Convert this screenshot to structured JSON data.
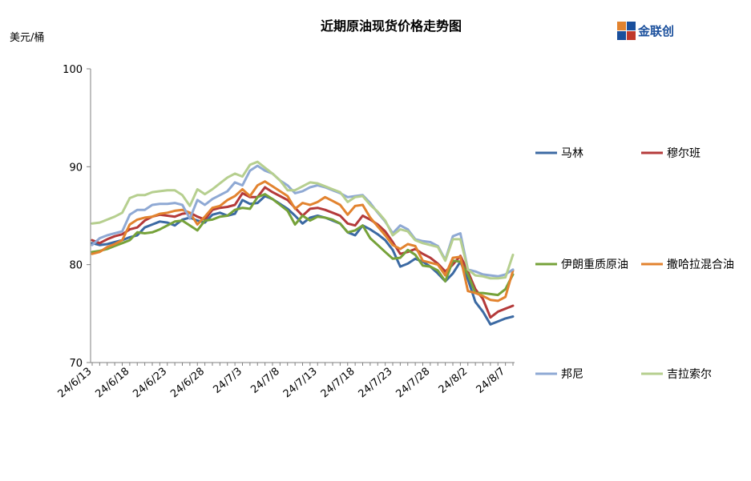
{
  "chart_data": {
    "type": "line",
    "title": "近期原油现货价格走势图",
    "ylabel": "美元/桶",
    "ylim": [
      70,
      100
    ],
    "yticks": [
      70,
      80,
      90,
      100
    ],
    "x_tick_labels": [
      "24/6/13",
      "24/6/18",
      "24/6/23",
      "24/6/28",
      "24/7/3",
      "24/7/8",
      "24/7/13",
      "24/7/18",
      "24/7/23",
      "24/7/28",
      "24/8/2",
      "24/8/7"
    ],
    "x_tick_indices": [
      0,
      5,
      10,
      15,
      20,
      25,
      30,
      35,
      40,
      45,
      50,
      55
    ],
    "x_count": 57,
    "legend_position": "right",
    "series": [
      {
        "name": "马林",
        "color": "#3c6aa3",
        "values": [
          82.2,
          82.0,
          82.1,
          82.3,
          82.5,
          82.8,
          83.0,
          83.8,
          84.1,
          84.4,
          84.3,
          84.0,
          84.6,
          84.8,
          84.5,
          84.3,
          85.1,
          85.3,
          85.0,
          85.2,
          86.6,
          86.2,
          86.3,
          87.0,
          86.7,
          86.2,
          85.7,
          85.0,
          84.2,
          84.8,
          85.0,
          84.8,
          84.5,
          84.2,
          83.3,
          83.0,
          84.0,
          83.6,
          83.1,
          82.5,
          81.5,
          79.8,
          80.1,
          80.6,
          80.3,
          79.8,
          79.1,
          78.3,
          79.1,
          80.3,
          78.5,
          76.2,
          75.2,
          73.9,
          74.2,
          74.5,
          74.7
        ]
      },
      {
        "name": "穆尔班",
        "color": "#b43a3a",
        "values": [
          82.5,
          82.2,
          82.6,
          82.9,
          83.1,
          83.6,
          83.8,
          84.5,
          84.9,
          85.1,
          85.0,
          84.9,
          85.2,
          85.3,
          84.9,
          84.6,
          85.6,
          85.8,
          85.9,
          86.1,
          87.3,
          86.9,
          86.9,
          87.9,
          87.4,
          87.0,
          86.6,
          85.8,
          85.0,
          85.7,
          85.8,
          85.6,
          85.3,
          85.0,
          84.2,
          84.0,
          85.0,
          84.6,
          84.1,
          83.4,
          82.3,
          81.1,
          81.3,
          81.6,
          81.1,
          80.7,
          80.1,
          79.3,
          80.0,
          80.9,
          79.3,
          77.5,
          76.5,
          74.6,
          75.2,
          75.5,
          75.8
        ]
      },
      {
        "name": "伊朗重质原油",
        "color": "#76a23a",
        "values": [
          81.3,
          81.4,
          81.6,
          81.9,
          82.2,
          82.5,
          83.3,
          83.2,
          83.3,
          83.6,
          84.0,
          84.4,
          84.5,
          84.0,
          83.5,
          84.5,
          84.6,
          84.9,
          85.0,
          85.6,
          85.8,
          85.7,
          86.9,
          87.2,
          86.7,
          86.1,
          85.5,
          84.1,
          85.0,
          84.5,
          84.9,
          84.8,
          84.6,
          84.2,
          83.3,
          83.5,
          84.0,
          82.7,
          82.0,
          81.3,
          80.6,
          80.7,
          81.5,
          81.0,
          79.9,
          79.8,
          79.4,
          78.3,
          80.4,
          80.3,
          79.0,
          77.1,
          77.1,
          77.0,
          76.9,
          77.5,
          79.0
        ]
      },
      {
        "name": "撒哈拉混合油",
        "color": "#e2832f",
        "values": [
          81.1,
          81.3,
          81.8,
          82.1,
          82.5,
          84.1,
          84.6,
          84.8,
          84.9,
          85.2,
          85.3,
          85.5,
          85.6,
          85.3,
          84.1,
          84.9,
          85.8,
          86.0,
          86.6,
          87.0,
          87.7,
          87.0,
          88.1,
          88.5,
          88.0,
          87.5,
          87.0,
          85.7,
          86.3,
          86.1,
          86.4,
          86.9,
          86.5,
          86.1,
          85.1,
          86.0,
          86.1,
          84.8,
          83.9,
          83.0,
          82.0,
          81.6,
          82.1,
          81.9,
          80.4,
          80.2,
          80.0,
          78.9,
          80.7,
          80.8,
          77.3,
          77.1,
          76.8,
          76.4,
          76.3,
          76.7,
          79.4
        ]
      },
      {
        "name": "邦尼",
        "color": "#8fa9d4",
        "values": [
          82.0,
          82.7,
          83.0,
          83.2,
          83.4,
          85.1,
          85.6,
          85.6,
          86.1,
          86.2,
          86.2,
          86.3,
          86.1,
          84.7,
          86.6,
          86.1,
          86.7,
          87.1,
          87.5,
          88.4,
          88.1,
          89.6,
          90.1,
          89.6,
          89.3,
          88.6,
          88.1,
          87.3,
          87.5,
          87.9,
          88.1,
          87.9,
          87.6,
          87.3,
          86.9,
          87.0,
          87.1,
          86.3,
          85.3,
          84.4,
          83.2,
          84.0,
          83.6,
          82.6,
          82.4,
          82.3,
          81.9,
          80.5,
          82.9,
          83.2,
          79.5,
          79.3,
          79.0,
          78.9,
          78.8,
          79.0,
          79.5
        ]
      },
      {
        "name": "吉拉索尔",
        "color": "#b6cf8f",
        "values": [
          84.2,
          84.3,
          84.6,
          84.9,
          85.3,
          86.8,
          87.1,
          87.1,
          87.4,
          87.5,
          87.6,
          87.6,
          87.1,
          86.0,
          87.7,
          87.2,
          87.7,
          88.3,
          88.9,
          89.3,
          89.0,
          90.2,
          90.5,
          89.9,
          89.3,
          88.6,
          87.6,
          87.6,
          88.0,
          88.4,
          88.3,
          88.0,
          87.7,
          87.4,
          86.4,
          86.9,
          87.0,
          86.1,
          85.4,
          84.5,
          83.0,
          83.6,
          83.4,
          82.5,
          82.2,
          82.0,
          81.8,
          80.4,
          82.6,
          82.6,
          79.5,
          78.9,
          78.8,
          78.6,
          78.6,
          78.7,
          81.0
        ]
      }
    ]
  },
  "header": {
    "logo_text": "金联创"
  }
}
